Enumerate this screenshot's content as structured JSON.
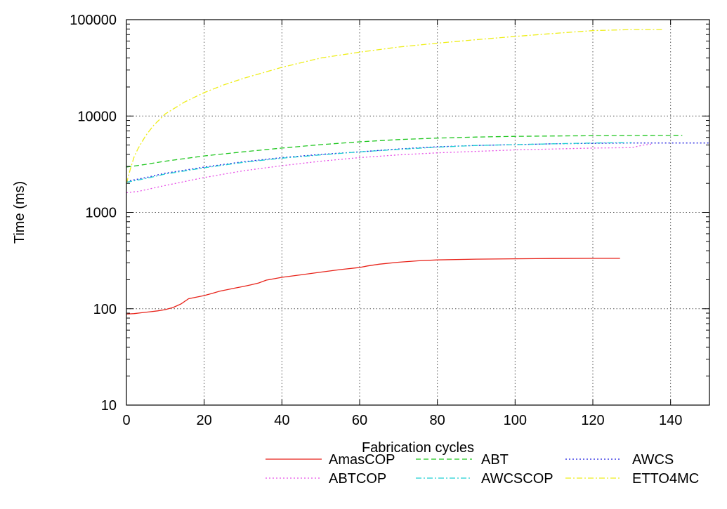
{
  "chart_data": {
    "type": "line",
    "xlabel": "Fabrication cycles",
    "ylabel": "Time (ms)",
    "xlim": [
      0,
      150
    ],
    "ylim": [
      10,
      100000
    ],
    "yscale": "log",
    "grid": true,
    "legend_position": "bottom",
    "xticks": [
      "0",
      "20",
      "40",
      "60",
      "80",
      "100",
      "120",
      "140"
    ],
    "xtick_values": [
      0,
      20,
      40,
      60,
      80,
      100,
      120,
      140
    ],
    "yticks": [
      "10",
      "100",
      "1000",
      "10000",
      "100000"
    ],
    "ytick_values": [
      10,
      100,
      1000,
      10000,
      100000
    ],
    "series": [
      {
        "name": "AmasCOP",
        "color": "#e8231a",
        "dash": "solid",
        "x": [
          0,
          2,
          4,
          6,
          8,
          10,
          12,
          14,
          16,
          18,
          20,
          22,
          24,
          26,
          28,
          30,
          32,
          34,
          36,
          38,
          40,
          45,
          50,
          55,
          60,
          62,
          65,
          70,
          75,
          80,
          90,
          100,
          110,
          120,
          127
        ],
        "y": [
          88,
          89,
          91,
          93,
          95,
          98,
          103,
          112,
          127,
          132,
          137,
          144,
          152,
          158,
          164,
          170,
          177,
          185,
          198,
          205,
          212,
          225,
          240,
          255,
          268,
          278,
          290,
          304,
          314,
          321,
          327,
          330,
          332,
          333,
          333
        ]
      },
      {
        "name": "ABT",
        "color": "#1fc61f",
        "dash": "dashed",
        "x": [
          0,
          5,
          10,
          20,
          30,
          40,
          50,
          60,
          70,
          80,
          90,
          100,
          110,
          120,
          130,
          143
        ],
        "y": [
          2950,
          3150,
          3400,
          3850,
          4250,
          4650,
          5050,
          5400,
          5700,
          5900,
          6050,
          6150,
          6200,
          6250,
          6280,
          6300
        ]
      },
      {
        "name": "AWCS",
        "color": "#1a1ae0",
        "dash": "dotted",
        "x": [
          0,
          5,
          10,
          20,
          30,
          40,
          50,
          60,
          70,
          80,
          90,
          100,
          110,
          120,
          130,
          150
        ],
        "y": [
          2100,
          2300,
          2550,
          2950,
          3350,
          3700,
          4000,
          4250,
          4550,
          4800,
          4950,
          5050,
          5150,
          5200,
          5250,
          5250
        ]
      },
      {
        "name": "ABTCOP",
        "color": "#e64ce6",
        "dash": "dotted",
        "x": [
          0,
          3,
          5,
          10,
          20,
          30,
          40,
          50,
          60,
          70,
          80,
          90,
          100,
          110,
          120,
          130,
          133,
          135
        ],
        "y": [
          1600,
          1650,
          1720,
          1900,
          2300,
          2700,
          3050,
          3400,
          3700,
          3950,
          4150,
          4300,
          4450,
          4550,
          4650,
          4700,
          5000,
          5100
        ]
      },
      {
        "name": "AWCSCOP",
        "color": "#1ecfd2",
        "dash": "dashdot",
        "x": [
          0,
          5,
          10,
          20,
          30,
          40,
          50,
          60,
          70,
          80,
          90,
          100,
          110,
          120,
          130
        ],
        "y": [
          2050,
          2250,
          2500,
          2900,
          3300,
          3650,
          3950,
          4250,
          4500,
          4750,
          4950,
          5050,
          5150,
          5250,
          5300
        ]
      },
      {
        "name": "ETTO4MC",
        "color": "#eeee1a",
        "dash": "dashdot",
        "x": [
          0,
          1,
          2,
          3,
          5,
          7,
          10,
          15,
          20,
          25,
          30,
          40,
          50,
          60,
          70,
          80,
          90,
          100,
          110,
          120,
          130,
          138
        ],
        "y": [
          2000,
          2800,
          3800,
          4600,
          6300,
          8000,
          10500,
          14000,
          17500,
          21000,
          24500,
          32000,
          40000,
          46000,
          52000,
          57000,
          62000,
          67000,
          72000,
          77000,
          79000,
          79000
        ]
      }
    ]
  }
}
